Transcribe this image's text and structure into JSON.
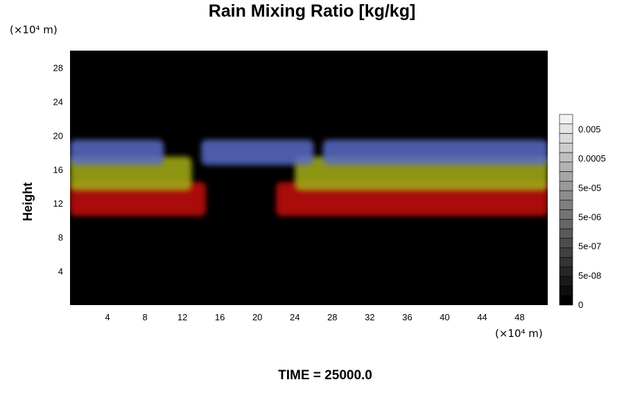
{
  "chart_data": {
    "type": "heatmap",
    "title": "Rain Mixing Ratio [kg/kg]",
    "xlabel": "",
    "ylabel": "Height",
    "x_unit": "(×10⁴ m)",
    "y_unit": "(×10⁴ m)",
    "xlim": [
      0,
      51
    ],
    "ylim": [
      0,
      30
    ],
    "x_ticks": [
      4,
      8,
      12,
      16,
      20,
      24,
      28,
      32,
      36,
      40,
      44,
      48
    ],
    "y_ticks": [
      4,
      8,
      12,
      16,
      20,
      24,
      28
    ],
    "background_color": "#000000",
    "colorbar": {
      "levels": [
        "0",
        "5e-08",
        "5e-07",
        "5e-06",
        "5e-05",
        "0.0005",
        "0.005"
      ],
      "colors": [
        "#000000",
        "#f2f2f2"
      ]
    },
    "bands": [
      {
        "name": "red",
        "color": "#c80a0a",
        "y_range": [
          10.5,
          14.5
        ],
        "x_segments": [
          [
            0,
            14.5
          ],
          [
            22,
            51
          ]
        ]
      },
      {
        "name": "yellow",
        "color": "#a6b014",
        "y_range": [
          13.5,
          17.5
        ],
        "x_segments": [
          [
            0,
            13
          ],
          [
            24,
            51
          ]
        ]
      },
      {
        "name": "blue",
        "color": "#5a6cc8",
        "y_range": [
          16.5,
          19.5
        ],
        "x_segments": [
          [
            0,
            10
          ],
          [
            14,
            26
          ],
          [
            27,
            51
          ]
        ]
      }
    ],
    "grid": false,
    "legend": "none"
  },
  "footer": {
    "time_label": "TIME = 25000.0"
  }
}
